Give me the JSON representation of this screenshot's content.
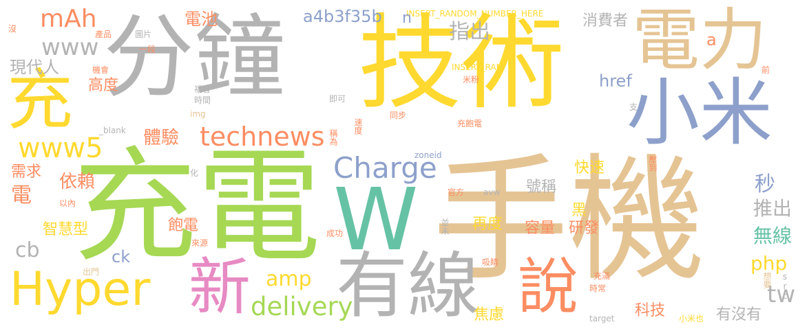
{
  "colors": {
    "yellow": "#FFD92F",
    "green": "#A6D854",
    "gray": "#B3B3B3",
    "tan": "#E5C494",
    "orange": "#FC8D62",
    "blue": "#8DA0CB",
    "teal": "#66C2A5",
    "pink": "#E78AC3"
  },
  "words": [
    {
      "text": "技術",
      "color": "yellow"
    },
    {
      "text": "分鐘",
      "color": "gray"
    },
    {
      "text": "充電",
      "color": "green"
    },
    {
      "text": "手機",
      "color": "tan"
    },
    {
      "text": "電力",
      "color": "tan"
    },
    {
      "text": "小米",
      "color": "blue"
    },
    {
      "text": "W",
      "color": "teal"
    },
    {
      "text": "有線",
      "color": "gray"
    },
    {
      "text": "說",
      "color": "orange"
    },
    {
      "text": "新",
      "color": "pink"
    },
    {
      "text": "充",
      "color": "yellow"
    },
    {
      "text": "Hyper",
      "color": "yellow"
    },
    {
      "text": "Charge",
      "color": "blue"
    },
    {
      "text": "technews",
      "color": "orange"
    },
    {
      "text": "delivery",
      "color": "green"
    },
    {
      "text": "www5",
      "color": "yellow"
    },
    {
      "text": "mAh",
      "color": "orange"
    },
    {
      "text": "www",
      "color": "gray"
    },
    {
      "text": "a4b3f35b",
      "color": "blue"
    },
    {
      "text": "INSERT_RANDOM_NUMBER_HERE",
      "color": "yellow"
    },
    {
      "text": "INSERT_RAN",
      "color": "yellow"
    },
    {
      "text": "指出",
      "color": "gray"
    },
    {
      "text": "消費者",
      "color": "gray"
    },
    {
      "text": "電池",
      "color": "orange"
    },
    {
      "text": "n",
      "color": "blue"
    },
    {
      "text": "a",
      "color": "orange"
    },
    {
      "text": "href",
      "color": "blue"
    },
    {
      "text": "現代人",
      "color": "gray"
    },
    {
      "text": "高度",
      "color": "orange"
    },
    {
      "text": "體驗",
      "color": "orange"
    },
    {
      "text": "需求",
      "color": "orange"
    },
    {
      "text": "依賴",
      "color": "orange"
    },
    {
      "text": "電",
      "color": "orange"
    },
    {
      "text": "智慧型",
      "color": "yellow"
    },
    {
      "text": "cb",
      "color": "gray"
    },
    {
      "text": "ck",
      "color": "blue"
    },
    {
      "text": "amp",
      "color": "yellow"
    },
    {
      "text": "快速",
      "color": "yellow"
    },
    {
      "text": "號稱",
      "color": "gray"
    },
    {
      "text": "秒",
      "color": "blue"
    },
    {
      "text": "推出",
      "color": "gray"
    },
    {
      "text": "無線",
      "color": "teal"
    },
    {
      "text": "php",
      "color": "yellow"
    },
    {
      "text": "tw",
      "color": "gray"
    },
    {
      "text": "黑",
      "color": "yellow"
    },
    {
      "text": "再度",
      "color": "yellow"
    },
    {
      "text": "容量",
      "color": "orange"
    },
    {
      "text": "研發",
      "color": "orange"
    },
    {
      "text": "飽電",
      "color": "orange"
    },
    {
      "text": "焦慮",
      "color": "yellow"
    },
    {
      "text": "科技",
      "color": "orange"
    },
    {
      "text": "有沒有",
      "color": "gray"
    },
    {
      "text": "沒",
      "color": "orange"
    },
    {
      "text": "產品",
      "color": "orange"
    },
    {
      "text": "圖片",
      "color": "gray"
    },
    {
      "text": "一段",
      "color": "orange"
    },
    {
      "text": "機會",
      "color": "orange"
    },
    {
      "text": "米粉",
      "color": "orange"
    },
    {
      "text": "福音",
      "color": "gray"
    },
    {
      "text": "時間",
      "color": "gray"
    },
    {
      "text": "即可",
      "color": "gray"
    },
    {
      "text": "img",
      "color": "tan"
    },
    {
      "text": "同步",
      "color": "orange"
    },
    {
      "text": "充飽電",
      "color": "orange"
    },
    {
      "text": "支",
      "color": "gray"
    },
    {
      "text": "前",
      "color": "orange"
    },
    {
      "text": "速度",
      "color": "orange"
    },
    {
      "text": "稱為",
      "color": "orange"
    },
    {
      "text": "_blank",
      "color": "gray"
    },
    {
      "text": "zoneid",
      "color": "blue"
    },
    {
      "text": "化",
      "color": "gray"
    },
    {
      "text": "以內",
      "color": "orange"
    },
    {
      "text": "官方",
      "color": "orange"
    },
    {
      "text": "avw",
      "color": "gray"
    },
    {
      "text": "壓到",
      "color": "orange"
    },
    {
      "text": "並未",
      "color": "gray"
    },
    {
      "text": "成功",
      "color": "orange"
    },
    {
      "text": "來源",
      "color": "orange"
    },
    {
      "text": "吸睛",
      "color": "orange"
    },
    {
      "text": "出門",
      "color": "tan"
    },
    {
      "text": "充滿",
      "color": "orange"
    },
    {
      "text": "時常",
      "color": "orange"
    },
    {
      "text": "想要",
      "color": "tan"
    },
    {
      "text": "src",
      "color": "gray"
    },
    {
      "text": "target",
      "color": "gray"
    },
    {
      "text": "小米也",
      "color": "yellow"
    }
  ]
}
